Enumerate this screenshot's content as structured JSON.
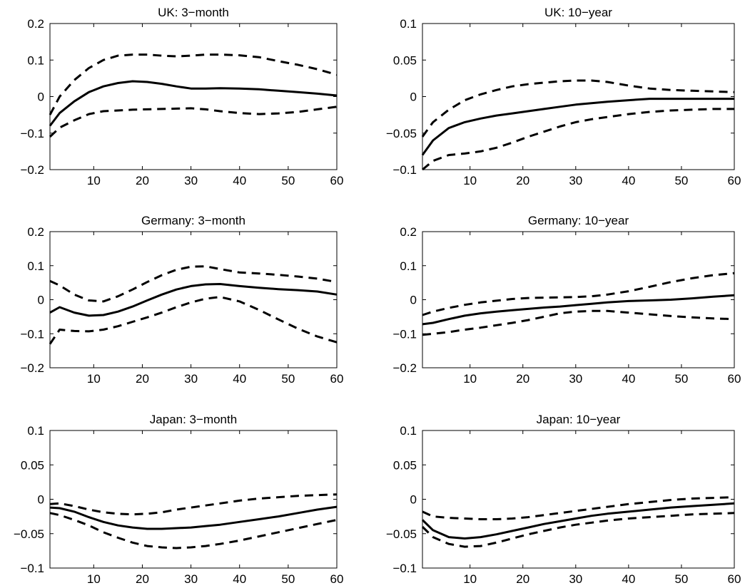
{
  "chart_data": [
    {
      "type": "line",
      "title": "UK: 3−month",
      "xlim": [
        1,
        60
      ],
      "ylim": [
        -0.2,
        0.2
      ],
      "xticks": [
        10,
        20,
        30,
        40,
        50,
        60
      ],
      "yticks": [
        -0.2,
        -0.1,
        0,
        0.1,
        0.2
      ],
      "xtick_labels": [
        "10",
        "20",
        "30",
        "40",
        "50",
        "60"
      ],
      "ytick_labels": [
        "−0.2",
        "−0.1",
        "0",
        "0.1",
        "0.2"
      ],
      "x": [
        1,
        3,
        6,
        9,
        12,
        15,
        18,
        21,
        24,
        27,
        30,
        33,
        36,
        40,
        44,
        48,
        52,
        56,
        60
      ],
      "series": [
        {
          "style": "dashed",
          "values": [
            -0.05,
            0.0,
            0.045,
            0.078,
            0.1,
            0.112,
            0.115,
            0.115,
            0.112,
            0.11,
            0.112,
            0.115,
            0.115,
            0.113,
            0.108,
            0.097,
            0.087,
            0.075,
            0.06
          ]
        },
        {
          "style": "solid",
          "values": [
            -0.08,
            -0.045,
            -0.013,
            0.012,
            0.028,
            0.037,
            0.042,
            0.04,
            0.035,
            0.028,
            0.022,
            0.022,
            0.023,
            0.022,
            0.02,
            0.016,
            0.012,
            0.008,
            0.003
          ]
        },
        {
          "style": "dashed",
          "values": [
            -0.11,
            -0.085,
            -0.065,
            -0.048,
            -0.04,
            -0.038,
            -0.036,
            -0.035,
            -0.034,
            -0.033,
            -0.032,
            -0.035,
            -0.04,
            -0.045,
            -0.048,
            -0.046,
            -0.042,
            -0.035,
            -0.028
          ]
        }
      ]
    },
    {
      "type": "line",
      "title": "UK: 10−year",
      "xlim": [
        1,
        60
      ],
      "ylim": [
        -0.1,
        0.1
      ],
      "xticks": [
        10,
        20,
        30,
        40,
        50,
        60
      ],
      "yticks": [
        -0.1,
        -0.05,
        0,
        0.05,
        0.1
      ],
      "xtick_labels": [
        "10",
        "20",
        "30",
        "40",
        "50",
        "60"
      ],
      "ytick_labels": [
        "−0.1",
        "−0.05",
        "0",
        "0.05",
        "0.1"
      ],
      "x": [
        1,
        3,
        6,
        9,
        12,
        15,
        18,
        21,
        24,
        27,
        30,
        33,
        36,
        40,
        44,
        48,
        52,
        56,
        60
      ],
      "series": [
        {
          "style": "dashed",
          "values": [
            -0.055,
            -0.035,
            -0.018,
            -0.005,
            0.003,
            0.009,
            0.014,
            0.017,
            0.019,
            0.021,
            0.022,
            0.022,
            0.02,
            0.015,
            0.011,
            0.009,
            0.008,
            0.007,
            0.006
          ]
        },
        {
          "style": "solid",
          "values": [
            -0.08,
            -0.06,
            -0.043,
            -0.035,
            -0.03,
            -0.026,
            -0.023,
            -0.02,
            -0.017,
            -0.014,
            -0.011,
            -0.009,
            -0.007,
            -0.005,
            -0.003,
            -0.003,
            -0.003,
            -0.003,
            -0.003
          ]
        },
        {
          "style": "dashed",
          "values": [
            -0.1,
            -0.088,
            -0.08,
            -0.078,
            -0.075,
            -0.07,
            -0.063,
            -0.055,
            -0.048,
            -0.041,
            -0.035,
            -0.031,
            -0.028,
            -0.024,
            -0.021,
            -0.019,
            -0.018,
            -0.017,
            -0.017
          ]
        }
      ]
    },
    {
      "type": "line",
      "title": "Germany: 3−month",
      "xlim": [
        1,
        60
      ],
      "ylim": [
        -0.2,
        0.2
      ],
      "xticks": [
        10,
        20,
        30,
        40,
        50,
        60
      ],
      "yticks": [
        -0.2,
        -0.1,
        0,
        0.1,
        0.2
      ],
      "xtick_labels": [
        "10",
        "20",
        "30",
        "40",
        "50",
        "60"
      ],
      "ytick_labels": [
        "−0.2",
        "−0.1",
        "0",
        "0.1",
        "0.2"
      ],
      "x": [
        1,
        3,
        6,
        9,
        12,
        15,
        18,
        21,
        24,
        27,
        30,
        33,
        36,
        40,
        44,
        48,
        52,
        56,
        60
      ],
      "series": [
        {
          "style": "dashed",
          "values": [
            0.055,
            0.042,
            0.015,
            -0.002,
            -0.005,
            0.01,
            0.03,
            0.052,
            0.072,
            0.088,
            0.097,
            0.098,
            0.09,
            0.08,
            0.077,
            0.073,
            0.068,
            0.062,
            0.052
          ]
        },
        {
          "style": "solid",
          "values": [
            -0.038,
            -0.022,
            -0.038,
            -0.047,
            -0.045,
            -0.035,
            -0.02,
            -0.002,
            0.015,
            0.03,
            0.04,
            0.045,
            0.046,
            0.04,
            0.035,
            0.031,
            0.028,
            0.024,
            0.015
          ]
        },
        {
          "style": "dashed",
          "values": [
            -0.13,
            -0.088,
            -0.092,
            -0.093,
            -0.088,
            -0.078,
            -0.065,
            -0.052,
            -0.038,
            -0.022,
            -0.008,
            0.003,
            0.008,
            -0.005,
            -0.03,
            -0.058,
            -0.085,
            -0.108,
            -0.125
          ]
        }
      ]
    },
    {
      "type": "line",
      "title": "Germany: 10−year",
      "xlim": [
        1,
        60
      ],
      "ylim": [
        -0.2,
        0.2
      ],
      "xticks": [
        10,
        20,
        30,
        40,
        50,
        60
      ],
      "yticks": [
        -0.2,
        -0.1,
        0,
        0.1,
        0.2
      ],
      "xtick_labels": [
        "10",
        "20",
        "30",
        "40",
        "50",
        "60"
      ],
      "ytick_labels": [
        "−0.2",
        "−0.1",
        "0",
        "0.1",
        "0.2"
      ],
      "x": [
        1,
        3,
        6,
        9,
        12,
        15,
        18,
        21,
        24,
        27,
        30,
        33,
        36,
        40,
        44,
        48,
        52,
        56,
        60
      ],
      "series": [
        {
          "style": "dashed",
          "values": [
            -0.045,
            -0.035,
            -0.024,
            -0.015,
            -0.008,
            -0.003,
            0.002,
            0.005,
            0.006,
            0.007,
            0.008,
            0.01,
            0.015,
            0.025,
            0.038,
            0.052,
            0.063,
            0.072,
            0.078
          ]
        },
        {
          "style": "solid",
          "values": [
            -0.072,
            -0.068,
            -0.057,
            -0.047,
            -0.04,
            -0.035,
            -0.031,
            -0.027,
            -0.023,
            -0.02,
            -0.016,
            -0.012,
            -0.008,
            -0.004,
            -0.002,
            0.0,
            0.004,
            0.009,
            0.013
          ]
        },
        {
          "style": "dashed",
          "values": [
            -0.103,
            -0.1,
            -0.095,
            -0.088,
            -0.082,
            -0.075,
            -0.068,
            -0.06,
            -0.05,
            -0.04,
            -0.035,
            -0.033,
            -0.033,
            -0.038,
            -0.043,
            -0.048,
            -0.052,
            -0.055,
            -0.057
          ]
        }
      ]
    },
    {
      "type": "line",
      "title": "Japan: 3−month",
      "xlim": [
        1,
        60
      ],
      "ylim": [
        -0.1,
        0.1
      ],
      "xticks": [
        10,
        20,
        30,
        40,
        50,
        60
      ],
      "yticks": [
        -0.1,
        -0.05,
        0,
        0.05,
        0.1
      ],
      "xtick_labels": [
        "10",
        "20",
        "30",
        "40",
        "50",
        "60"
      ],
      "ytick_labels": [
        "−0.1",
        "−0.05",
        "0",
        "0.05",
        "0.1"
      ],
      "x": [
        1,
        3,
        6,
        9,
        12,
        15,
        18,
        21,
        24,
        27,
        30,
        33,
        36,
        40,
        44,
        48,
        52,
        56,
        60
      ],
      "series": [
        {
          "style": "dashed",
          "values": [
            -0.007,
            -0.006,
            -0.01,
            -0.015,
            -0.019,
            -0.021,
            -0.022,
            -0.021,
            -0.019,
            -0.015,
            -0.012,
            -0.009,
            -0.006,
            -0.002,
            0.001,
            0.003,
            0.005,
            0.006,
            0.007
          ]
        },
        {
          "style": "solid",
          "values": [
            -0.012,
            -0.013,
            -0.018,
            -0.026,
            -0.033,
            -0.038,
            -0.041,
            -0.043,
            -0.043,
            -0.042,
            -0.041,
            -0.039,
            -0.037,
            -0.033,
            -0.029,
            -0.025,
            -0.02,
            -0.015,
            -0.011
          ]
        },
        {
          "style": "dashed",
          "values": [
            -0.02,
            -0.023,
            -0.03,
            -0.038,
            -0.048,
            -0.056,
            -0.063,
            -0.068,
            -0.07,
            -0.071,
            -0.07,
            -0.068,
            -0.065,
            -0.06,
            -0.054,
            -0.048,
            -0.042,
            -0.036,
            -0.03
          ]
        }
      ]
    },
    {
      "type": "line",
      "title": "Japan: 10−year",
      "xlim": [
        1,
        60
      ],
      "ylim": [
        -0.1,
        0.1
      ],
      "xticks": [
        10,
        20,
        30,
        40,
        50,
        60
      ],
      "yticks": [
        -0.1,
        -0.05,
        0,
        0.05,
        0.1
      ],
      "xtick_labels": [
        "10",
        "20",
        "30",
        "40",
        "50",
        "60"
      ],
      "ytick_labels": [
        "−0.1",
        "−0.05",
        "0",
        "0.05",
        "0.1"
      ],
      "x": [
        1,
        3,
        6,
        9,
        12,
        15,
        18,
        21,
        24,
        27,
        30,
        33,
        36,
        40,
        44,
        48,
        52,
        56,
        60
      ],
      "series": [
        {
          "style": "dashed",
          "values": [
            -0.018,
            -0.025,
            -0.027,
            -0.028,
            -0.029,
            -0.029,
            -0.028,
            -0.026,
            -0.023,
            -0.02,
            -0.017,
            -0.014,
            -0.011,
            -0.007,
            -0.004,
            -0.001,
            0.001,
            0.002,
            0.003
          ]
        },
        {
          "style": "solid",
          "values": [
            -0.03,
            -0.045,
            -0.055,
            -0.057,
            -0.055,
            -0.051,
            -0.046,
            -0.041,
            -0.036,
            -0.032,
            -0.028,
            -0.024,
            -0.021,
            -0.018,
            -0.015,
            -0.012,
            -0.01,
            -0.008,
            -0.006
          ]
        },
        {
          "style": "dashed",
          "values": [
            -0.04,
            -0.055,
            -0.065,
            -0.069,
            -0.068,
            -0.063,
            -0.057,
            -0.051,
            -0.046,
            -0.041,
            -0.037,
            -0.034,
            -0.031,
            -0.028,
            -0.026,
            -0.024,
            -0.022,
            -0.021,
            -0.02
          ]
        }
      ]
    }
  ]
}
